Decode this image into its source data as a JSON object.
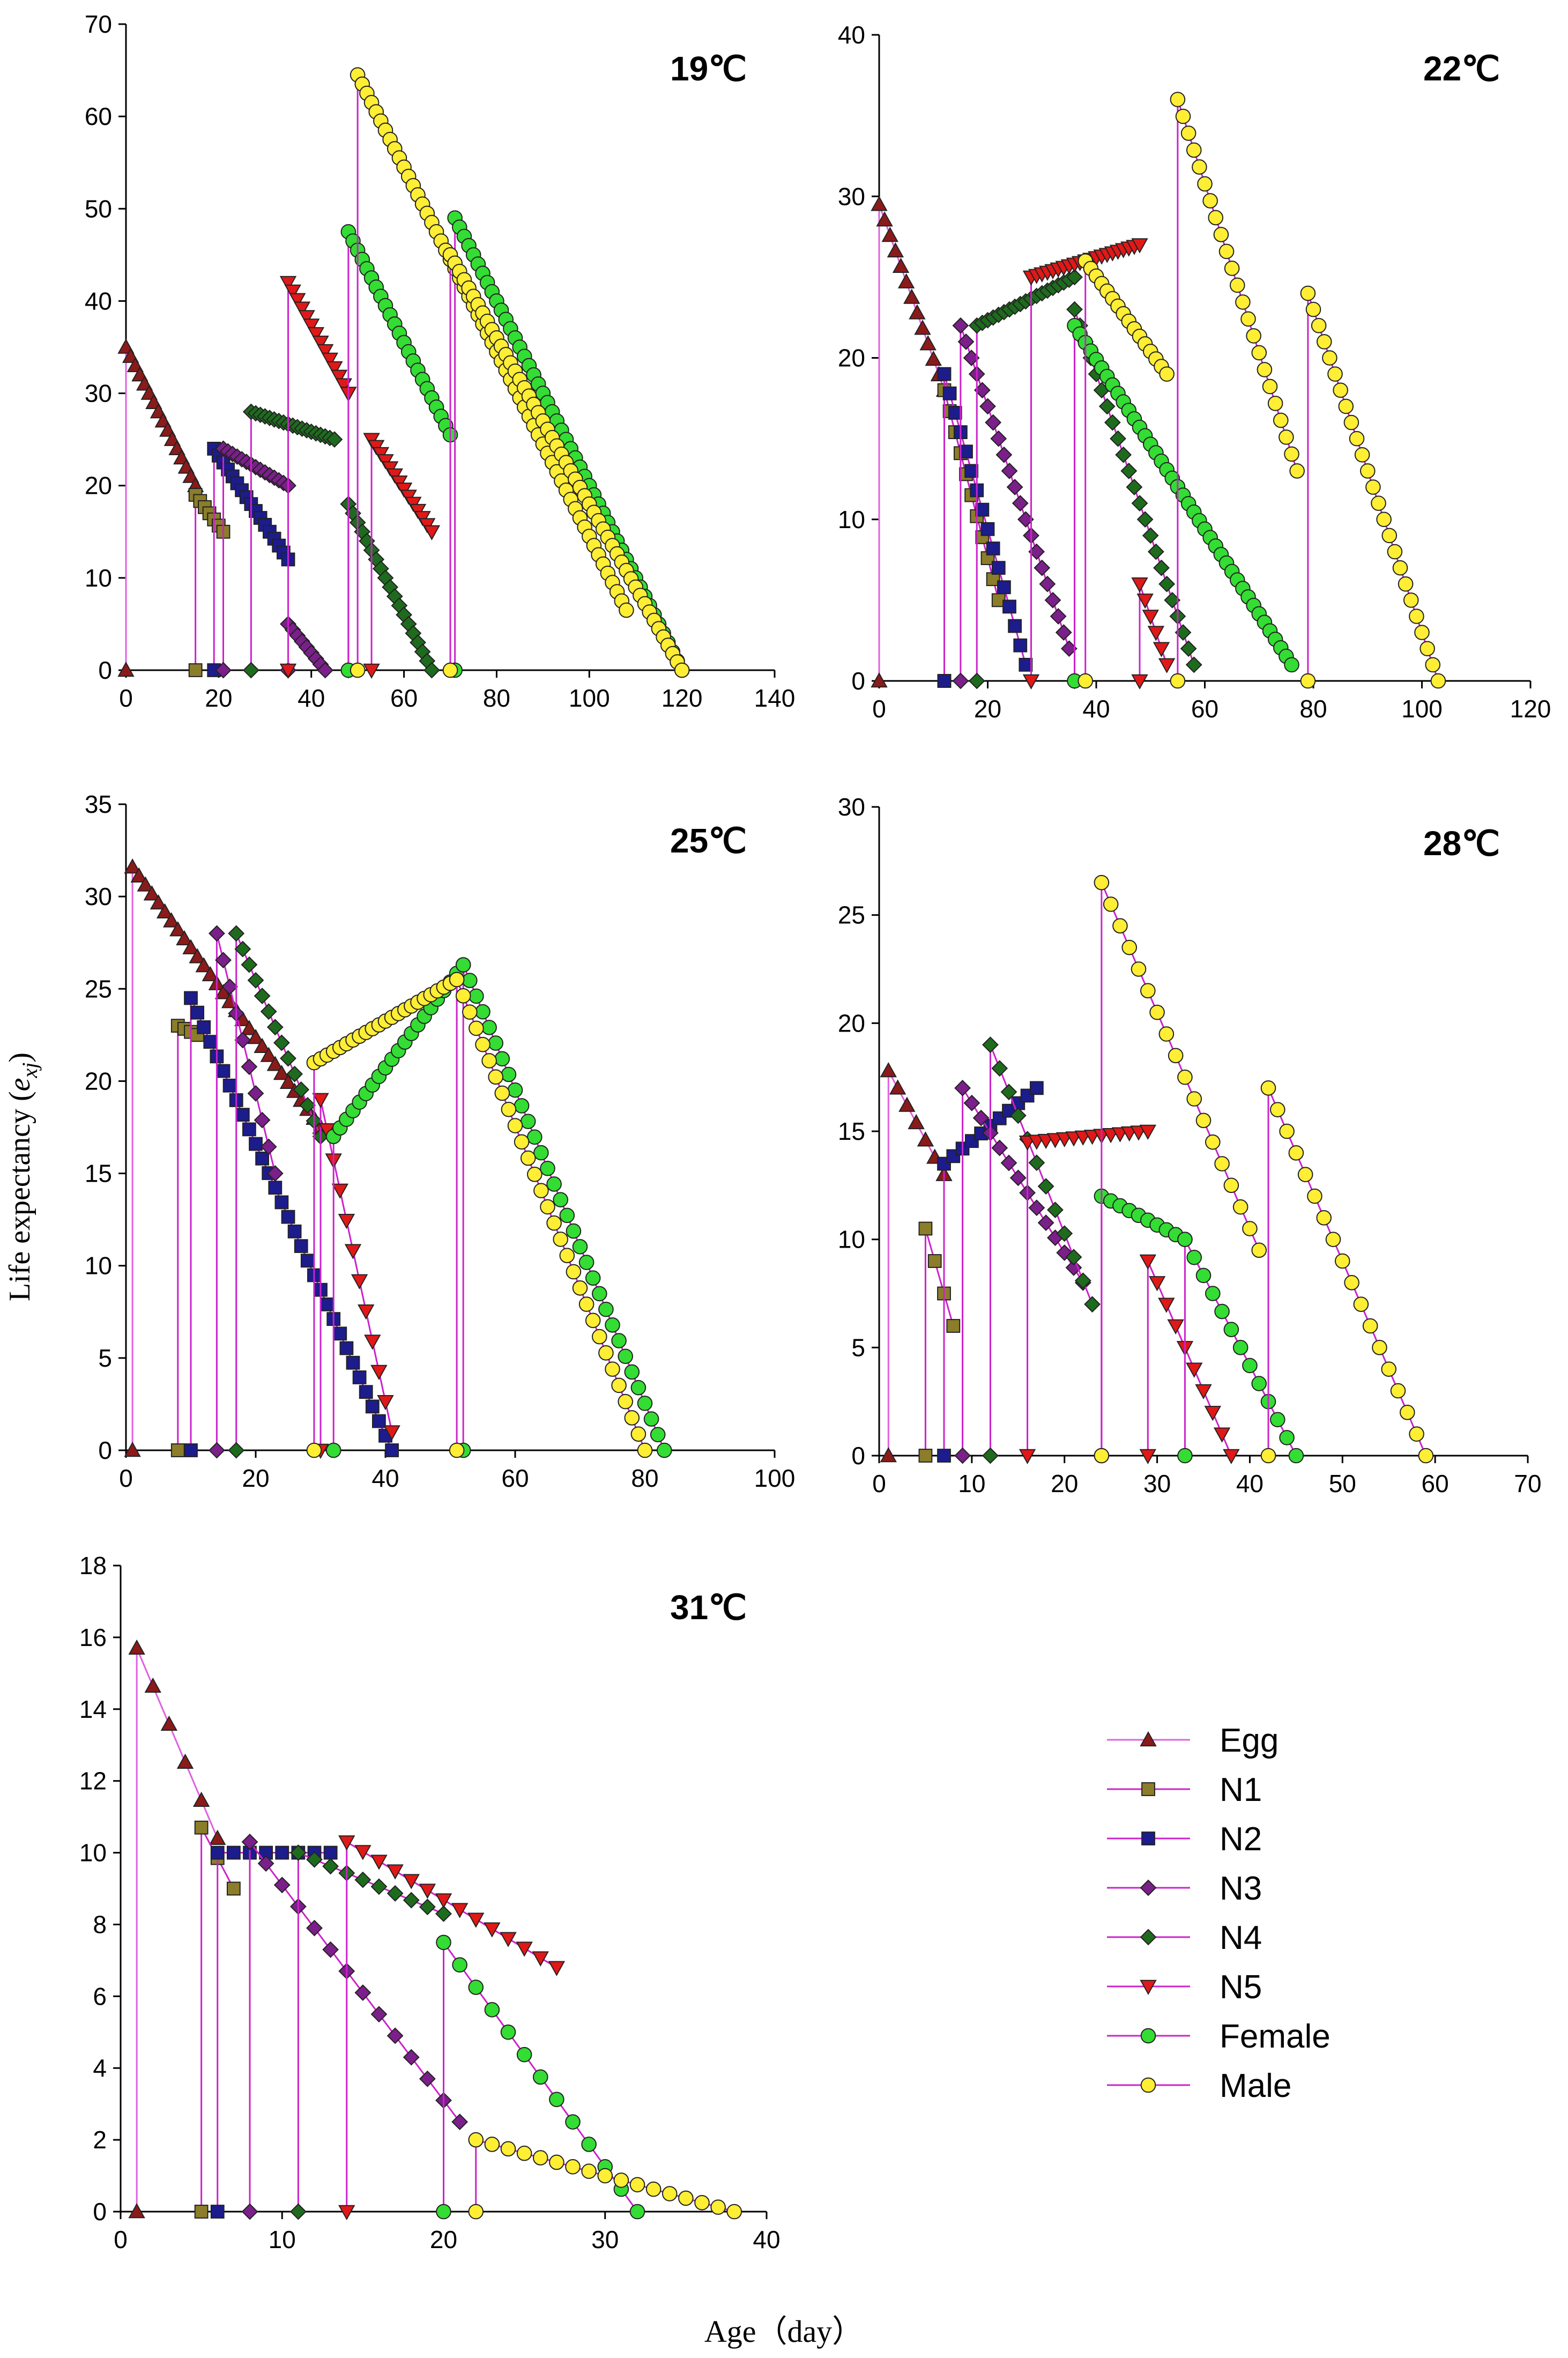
{
  "figure": {
    "ylabel": "Life expectancy (",
    "ylabel_symbol": "e",
    "ylabel_sub": "xj",
    "ylabel_close": ")",
    "xlabel": "Age（day）"
  },
  "legend": {
    "items": [
      {
        "label": "Egg",
        "marker": "triangle-up",
        "fill": "#8B1A1A",
        "line": "#E060E0"
      },
      {
        "label": "N1",
        "marker": "square",
        "fill": "#8B7D2A",
        "line": "#CC22CC"
      },
      {
        "label": "N2",
        "marker": "square",
        "fill": "#1C1C8C",
        "line": "#CC22CC"
      },
      {
        "label": "N3",
        "marker": "diamond",
        "fill": "#7B1F8A",
        "line": "#CC22CC"
      },
      {
        "label": "N4",
        "marker": "diamond",
        "fill": "#1E6B1E",
        "line": "#CC22CC"
      },
      {
        "label": "N5",
        "marker": "triangle-down",
        "fill": "#E01818",
        "line": "#CC22CC"
      },
      {
        "label": "Female",
        "marker": "circle",
        "fill": "#33DD33",
        "line": "#CC22CC"
      },
      {
        "label": "Male",
        "marker": "circle",
        "fill": "#FFEE33",
        "line": "#CC22CC"
      }
    ]
  },
  "chart_data": [
    {
      "type": "line",
      "title": "19℃",
      "xlim": [
        0,
        140
      ],
      "xticks": [
        0,
        20,
        40,
        60,
        80,
        100,
        120,
        140
      ],
      "ylim": [
        0,
        70
      ],
      "yticks": [
        0,
        10,
        20,
        30,
        40,
        50,
        60,
        70
      ],
      "series": [
        {
          "name": "Egg",
          "segments": [
            {
              "start": 0,
              "end": 15,
              "v0": 35,
              "v1": 20
            }
          ]
        },
        {
          "name": "N1",
          "segments": [
            {
              "start": 15,
              "end": 21,
              "v0": 19,
              "v1": 15
            }
          ]
        },
        {
          "name": "N2",
          "segments": [
            {
              "start": 19,
              "end": 35,
              "v0": 24,
              "v1": 12
            }
          ]
        },
        {
          "name": "N3",
          "segments": [
            {
              "start": 21,
              "end": 35,
              "v0": 24,
              "v1": 20
            },
            {
              "start": 35,
              "end": 43,
              "v0": 5,
              "v1": 0
            }
          ]
        },
        {
          "name": "N4",
          "segments": [
            {
              "start": 27,
              "end": 45,
              "v0": 28,
              "v1": 25
            },
            {
              "start": 48,
              "end": 66,
              "v0": 18,
              "v1": 0
            }
          ]
        },
        {
          "name": "N5",
          "segments": [
            {
              "start": 35,
              "end": 48,
              "v0": 42,
              "v1": 30
            },
            {
              "start": 53,
              "end": 66,
              "v0": 25,
              "v1": 15
            }
          ]
        },
        {
          "name": "Female",
          "segments": [
            {
              "start": 48,
              "end": 70,
              "v0": 47.5,
              "v1": 25.5
            },
            {
              "start": 71,
              "end": 120,
              "v0": 49,
              "v1": 0
            }
          ]
        },
        {
          "name": "Male",
          "segments": [
            {
              "start": 50,
              "end": 108,
              "v0": 64.5,
              "v1": 6.5
            },
            {
              "start": 70,
              "end": 120,
              "v0": 45,
              "v1": 0
            }
          ]
        }
      ]
    },
    {
      "type": "line",
      "title": "22℃",
      "xlim": [
        0,
        120
      ],
      "xticks": [
        0,
        20,
        40,
        60,
        80,
        100,
        120
      ],
      "ylim": [
        0,
        40
      ],
      "yticks": [
        0,
        10,
        20,
        30,
        40
      ],
      "series": [
        {
          "name": "Egg",
          "segments": [
            {
              "start": 0,
              "end": 12,
              "v0": 29.5,
              "v1": 18
            }
          ]
        },
        {
          "name": "N1",
          "segments": [
            {
              "start": 12,
              "end": 22,
              "v0": 18,
              "v1": 5
            }
          ]
        },
        {
          "name": "N2",
          "segments": [
            {
              "start": 12,
              "end": 27,
              "v0": 19,
              "v1": 1
            }
          ]
        },
        {
          "name": "N3",
          "segments": [
            {
              "start": 15,
              "end": 35,
              "v0": 22,
              "v1": 2
            }
          ]
        },
        {
          "name": "N4",
          "segments": [
            {
              "start": 18,
              "end": 36,
              "v0": 22,
              "v1": 25
            },
            {
              "start": 36,
              "end": 58,
              "v0": 23,
              "v1": 1
            }
          ]
        },
        {
          "name": "N5",
          "segments": [
            {
              "start": 28,
              "end": 48,
              "v0": 25,
              "v1": 27
            },
            {
              "start": 48,
              "end": 53,
              "v0": 6,
              "v1": 1
            }
          ]
        },
        {
          "name": "Female",
          "segments": [
            {
              "start": 36,
              "end": 76,
              "v0": 22,
              "v1": 1
            }
          ]
        },
        {
          "name": "Male",
          "segments": [
            {
              "start": 38,
              "end": 53,
              "v0": 26,
              "v1": 19
            },
            {
              "start": 55,
              "end": 77,
              "v0": 36,
              "v1": 13
            },
            {
              "start": 79,
              "end": 103,
              "v0": 24,
              "v1": 0
            }
          ]
        }
      ]
    },
    {
      "type": "line",
      "title": "25℃",
      "xlim": [
        0,
        100
      ],
      "xticks": [
        0,
        20,
        40,
        60,
        80,
        100
      ],
      "ylim": [
        0,
        35
      ],
      "yticks": [
        0,
        5,
        10,
        15,
        20,
        25,
        30,
        35
      ],
      "series": [
        {
          "name": "Egg",
          "segments": [
            {
              "start": 1,
              "end": 30,
              "v0": 31.6,
              "v1": 17.5
            }
          ]
        },
        {
          "name": "N1",
          "segments": [
            {
              "start": 8,
              "end": 11,
              "v0": 23,
              "v1": 22.5
            }
          ]
        },
        {
          "name": "N2",
          "segments": [
            {
              "start": 10,
              "end": 41,
              "v0": 24.5,
              "v1": 0
            }
          ]
        },
        {
          "name": "N3",
          "segments": [
            {
              "start": 14,
              "end": 23,
              "v0": 28,
              "v1": 15
            }
          ]
        },
        {
          "name": "N4",
          "segments": [
            {
              "start": 17,
              "end": 30,
              "v0": 28,
              "v1": 17
            }
          ]
        },
        {
          "name": "N5",
          "segments": [
            {
              "start": 30,
              "end": 41,
              "v0": 19,
              "v1": 1
            }
          ]
        },
        {
          "name": "Female",
          "segments": [
            {
              "start": 32,
              "end": 52,
              "v0": 17,
              "v1": 26.3
            },
            {
              "start": 52,
              "end": 83,
              "v0": 26.3,
              "v1": 0
            }
          ]
        },
        {
          "name": "Male",
          "segments": [
            {
              "start": 29,
              "end": 51,
              "v0": 21,
              "v1": 25.5
            },
            {
              "start": 51,
              "end": 80,
              "v0": 25.5,
              "v1": 0
            }
          ]
        }
      ]
    },
    {
      "type": "line",
      "title": "28℃",
      "xlim": [
        0,
        70
      ],
      "xticks": [
        0,
        10,
        20,
        30,
        40,
        50,
        60,
        70
      ],
      "ylim": [
        0,
        30
      ],
      "yticks": [
        0,
        5,
        10,
        15,
        20,
        25,
        30
      ],
      "series": [
        {
          "name": "Egg",
          "segments": [
            {
              "start": 1,
              "end": 7,
              "v0": 17.8,
              "v1": 13
            }
          ]
        },
        {
          "name": "N1",
          "segments": [
            {
              "start": 5,
              "end": 8,
              "v0": 10.5,
              "v1": 6
            }
          ]
        },
        {
          "name": "N2",
          "segments": [
            {
              "start": 7,
              "end": 17,
              "v0": 13.5,
              "v1": 17
            }
          ]
        },
        {
          "name": "N3",
          "segments": [
            {
              "start": 9,
              "end": 22,
              "v0": 17,
              "v1": 8
            }
          ]
        },
        {
          "name": "N4",
          "segments": [
            {
              "start": 12,
              "end": 23,
              "v0": 19,
              "v1": 7
            }
          ]
        },
        {
          "name": "N5",
          "segments": [
            {
              "start": 16,
              "end": 29,
              "v0": 14.5,
              "v1": 15
            },
            {
              "start": 29,
              "end": 38,
              "v0": 9,
              "v1": 0
            }
          ]
        },
        {
          "name": "Female",
          "segments": [
            {
              "start": 24,
              "end": 33,
              "v0": 12,
              "v1": 10
            },
            {
              "start": 33,
              "end": 45,
              "v0": 10,
              "v1": 0
            }
          ]
        },
        {
          "name": "Male",
          "segments": [
            {
              "start": 24,
              "end": 41,
              "v0": 26.5,
              "v1": 9.5
            },
            {
              "start": 42,
              "end": 59,
              "v0": 17,
              "v1": 0
            }
          ]
        }
      ]
    },
    {
      "type": "line",
      "title": "31℃",
      "xlim": [
        0,
        40
      ],
      "xticks": [
        0,
        10,
        20,
        30,
        40
      ],
      "ylim": [
        0,
        18
      ],
      "yticks": [
        0,
        2,
        4,
        6,
        8,
        10,
        12,
        14,
        16,
        18
      ],
      "series": [
        {
          "name": "Egg",
          "segments": [
            {
              "start": 1,
              "end": 6,
              "v0": 15.7,
              "v1": 10.4
            }
          ]
        },
        {
          "name": "N1",
          "segments": [
            {
              "start": 5,
              "end": 7,
              "v0": 10.7,
              "v1": 9
            }
          ]
        },
        {
          "name": "N2",
          "segments": [
            {
              "start": 6,
              "end": 13,
              "v0": 10,
              "v1": 10
            }
          ]
        },
        {
          "name": "N3",
          "segments": [
            {
              "start": 8,
              "end": 21,
              "v0": 10.3,
              "v1": 2.5
            }
          ]
        },
        {
          "name": "N4",
          "segments": [
            {
              "start": 11,
              "end": 20,
              "v0": 10,
              "v1": 8.3
            }
          ]
        },
        {
          "name": "N5",
          "segments": [
            {
              "start": 14,
              "end": 27,
              "v0": 10.3,
              "v1": 6.8
            }
          ]
        },
        {
          "name": "Female",
          "segments": [
            {
              "start": 20,
              "end": 32,
              "v0": 7.5,
              "v1": 0
            }
          ]
        },
        {
          "name": "Male",
          "segments": [
            {
              "start": 22,
              "end": 38,
              "v0": 2,
              "v1": 0
            }
          ]
        }
      ]
    }
  ]
}
